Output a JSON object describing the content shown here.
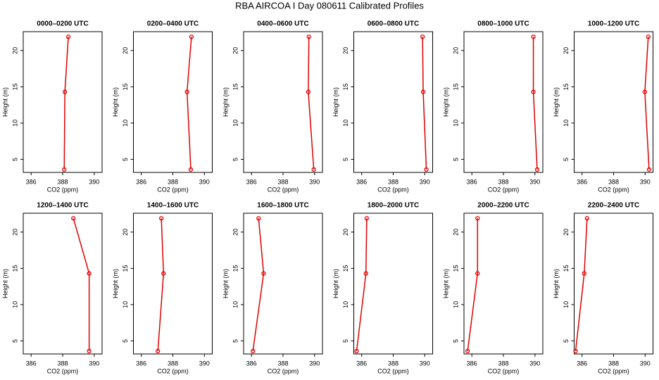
{
  "title": "RBA AIRCOA I  Day 080611  Calibrated Profiles",
  "chart_data": [
    {
      "type": "line",
      "title": "0000–0200 UTC",
      "xlabel": "CO2 (ppm)",
      "ylabel": "Height (m)",
      "color": "#e00000",
      "x": [
        388.1,
        388.14,
        388.36
      ],
      "values": [
        3.6,
        14.3,
        21.9
      ],
      "xlim": [
        385.5,
        390.5
      ],
      "ylim": [
        3.2,
        22.6
      ],
      "xticks": [
        386,
        388,
        390
      ],
      "yticks": [
        5,
        10,
        15,
        20
      ]
    },
    {
      "type": "line",
      "title": "0200–0400 UTC",
      "xlabel": "CO2 (ppm)",
      "ylabel": "Height (m)",
      "color": "#e00000",
      "x": [
        389.14,
        388.9,
        389.18
      ],
      "values": [
        3.6,
        14.3,
        21.9
      ],
      "xlim": [
        385.5,
        390.5
      ],
      "ylim": [
        3.2,
        22.6
      ],
      "xticks": [
        386,
        388,
        390
      ],
      "yticks": [
        5,
        10,
        15,
        20
      ]
    },
    {
      "type": "line",
      "title": "0400–0600 UTC",
      "xlabel": "CO2 (ppm)",
      "ylabel": "Height (m)",
      "color": "#e00000",
      "x": [
        389.95,
        389.6,
        389.64
      ],
      "values": [
        3.6,
        14.3,
        21.9
      ],
      "xlim": [
        385.5,
        390.5
      ],
      "ylim": [
        3.2,
        22.6
      ],
      "xticks": [
        386,
        388,
        390
      ],
      "yticks": [
        5,
        10,
        15,
        20
      ]
    },
    {
      "type": "line",
      "title": "0600–0800 UTC",
      "xlabel": "CO2 (ppm)",
      "ylabel": "Height (m)",
      "color": "#e00000",
      "x": [
        390.1,
        389.9,
        389.86
      ],
      "values": [
        3.6,
        14.3,
        21.9
      ],
      "xlim": [
        385.5,
        390.5
      ],
      "ylim": [
        3.2,
        22.6
      ],
      "xticks": [
        386,
        388,
        390
      ],
      "yticks": [
        5,
        10,
        15,
        20
      ]
    },
    {
      "type": "line",
      "title": "0800–1000 UTC",
      "xlabel": "CO2 (ppm)",
      "ylabel": "Height (m)",
      "color": "#e00000",
      "x": [
        390.14,
        389.9,
        389.9
      ],
      "values": [
        3.6,
        14.3,
        21.9
      ],
      "xlim": [
        385.5,
        390.5
      ],
      "ylim": [
        3.2,
        22.6
      ],
      "xticks": [
        386,
        388,
        390
      ],
      "yticks": [
        5,
        10,
        15,
        20
      ]
    },
    {
      "type": "line",
      "title": "1000–1200 UTC",
      "xlabel": "CO2 (ppm)",
      "ylabel": "Height (m)",
      "color": "#e00000",
      "x": [
        390.25,
        389.98,
        390.2
      ],
      "values": [
        3.6,
        14.3,
        21.9
      ],
      "xlim": [
        385.5,
        390.5
      ],
      "ylim": [
        3.2,
        22.6
      ],
      "xticks": [
        386,
        388,
        390
      ],
      "yticks": [
        5,
        10,
        15,
        20
      ]
    },
    {
      "type": "line",
      "title": "1200–1400 UTC",
      "xlabel": "CO2 (ppm)",
      "ylabel": "Height (m)",
      "color": "#e00000",
      "x": [
        389.68,
        389.68,
        388.68
      ],
      "values": [
        3.6,
        14.3,
        21.9
      ],
      "xlim": [
        385.5,
        390.5
      ],
      "ylim": [
        3.2,
        22.6
      ],
      "xticks": [
        386,
        388,
        390
      ],
      "yticks": [
        5,
        10,
        15,
        20
      ]
    },
    {
      "type": "line",
      "title": "1400–1600 UTC",
      "xlabel": "CO2 (ppm)",
      "ylabel": "Height (m)",
      "color": "#e00000",
      "x": [
        387.05,
        387.41,
        387.27
      ],
      "values": [
        3.6,
        14.3,
        21.9
      ],
      "xlim": [
        385.5,
        390.5
      ],
      "ylim": [
        3.2,
        22.6
      ],
      "xticks": [
        386,
        388,
        390
      ],
      "yticks": [
        5,
        10,
        15,
        20
      ]
    },
    {
      "type": "line",
      "title": "1600–1800 UTC",
      "xlabel": "CO2 (ppm)",
      "ylabel": "Height (m)",
      "color": "#e00000",
      "x": [
        386.09,
        386.77,
        386.45
      ],
      "values": [
        3.6,
        14.3,
        21.9
      ],
      "xlim": [
        385.5,
        390.5
      ],
      "ylim": [
        3.2,
        22.6
      ],
      "xticks": [
        386,
        388,
        390
      ],
      "yticks": [
        5,
        10,
        15,
        20
      ]
    },
    {
      "type": "line",
      "title": "1800–2000 UTC",
      "xlabel": "CO2 (ppm)",
      "ylabel": "Height (m)",
      "color": "#e00000",
      "x": [
        385.68,
        386.27,
        386.32
      ],
      "values": [
        3.6,
        14.3,
        21.9
      ],
      "xlim": [
        385.5,
        390.5
      ],
      "ylim": [
        3.2,
        22.6
      ],
      "xticks": [
        386,
        388,
        390
      ],
      "yticks": [
        5,
        10,
        15,
        20
      ]
    },
    {
      "type": "line",
      "title": "2000–2200 UTC",
      "xlabel": "CO2 (ppm)",
      "ylabel": "Height (m)",
      "color": "#e00000",
      "x": [
        385.73,
        386.36,
        386.36
      ],
      "values": [
        3.6,
        14.3,
        21.9
      ],
      "xlim": [
        385.5,
        390.5
      ],
      "ylim": [
        3.2,
        22.6
      ],
      "xticks": [
        386,
        388,
        390
      ],
      "yticks": [
        5,
        10,
        15,
        20
      ]
    },
    {
      "type": "line",
      "title": "2200–2400 UTC",
      "xlabel": "CO2 (ppm)",
      "ylabel": "Height (m)",
      "color": "#e00000",
      "x": [
        385.59,
        386.14,
        386.32
      ],
      "values": [
        3.6,
        14.3,
        21.9
      ],
      "xlim": [
        385.5,
        390.5
      ],
      "ylim": [
        3.2,
        22.6
      ],
      "xticks": [
        386,
        388,
        390
      ],
      "yticks": [
        5,
        10,
        15,
        20
      ]
    }
  ]
}
